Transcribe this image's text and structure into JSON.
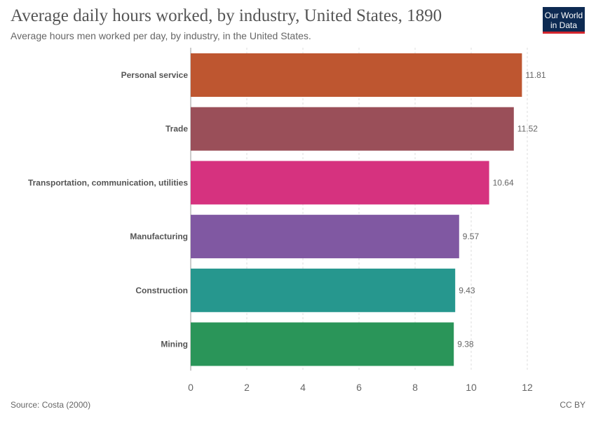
{
  "header": {
    "title": "Average daily hours worked, by industry, United States, 1890",
    "subtitle": "Average hours men worked per day, by industry, in the United States."
  },
  "logo": {
    "line1": "Our World",
    "line2": "in Data"
  },
  "footer": {
    "source": "Source: Costa (2000)",
    "license": "CC BY"
  },
  "chart_data": {
    "type": "bar",
    "orientation": "horizontal",
    "title": "Average daily hours worked, by industry, United States, 1890",
    "subtitle": "Average hours men worked per day, by industry, in the United States.",
    "categories": [
      "Personal service",
      "Trade",
      "Transportation, communication, utilities",
      "Manufacturing",
      "Construction",
      "Mining"
    ],
    "values": [
      11.81,
      11.52,
      10.64,
      9.57,
      9.43,
      9.38
    ],
    "value_labels": [
      "11.81",
      "11.52",
      "10.64",
      "9.57",
      "9.43",
      "9.38"
    ],
    "colors": [
      "#be5630",
      "#9a4f59",
      "#d6327f",
      "#8058a2",
      "#26978e",
      "#2a9559"
    ],
    "xlim": [
      0,
      12
    ],
    "xticks": [
      "0",
      "2",
      "4",
      "6",
      "8",
      "10",
      "12"
    ],
    "grid": true
  }
}
